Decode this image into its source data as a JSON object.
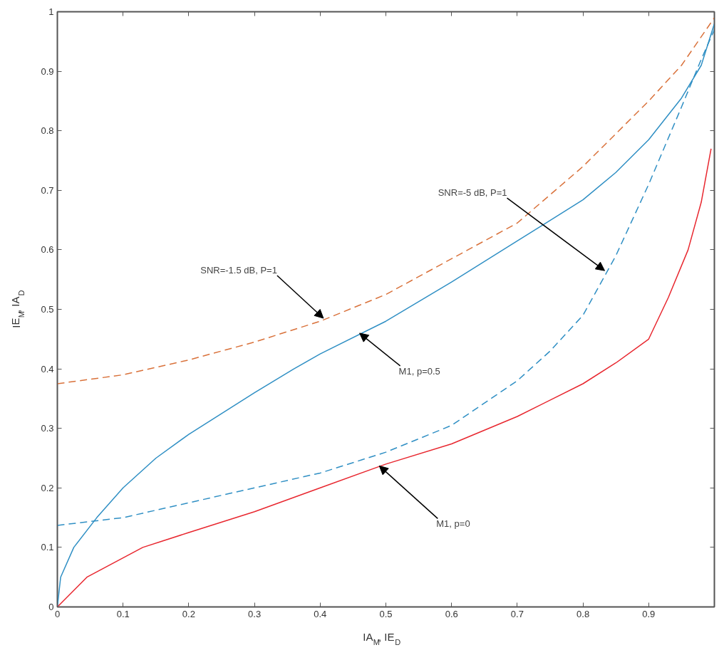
{
  "chart_data": {
    "type": "line",
    "xlabel": "IA$_{M}$, IE$_{D}$",
    "ylabel": "IE$_{M}$, IA$_{D}$",
    "xlim": [
      0,
      1
    ],
    "ylim": [
      0,
      1
    ],
    "xticks": [
      0,
      0.1,
      0.2,
      0.3,
      0.4,
      0.5,
      0.6,
      0.7,
      0.8,
      0.9,
      {
        "value": 1,
        "label": null
      }
    ],
    "yticks": [
      0,
      0.1,
      0.2,
      0.3,
      0.4,
      0.5,
      0.6,
      0.7,
      0.8,
      0.9,
      1
    ],
    "grid": false,
    "series": [
      {
        "color": "#e8272f",
        "line_style": "solid",
        "x": [
          0,
          0.045,
          0.13,
          0.2,
          0.3,
          0.4,
          0.5,
          0.6,
          0.7,
          0.8,
          0.85,
          0.9,
          0.93,
          0.96,
          0.98,
          0.995
        ],
        "values": [
          0,
          0.05,
          0.1,
          0.125,
          0.16,
          0.2,
          0.24,
          0.274,
          0.32,
          0.375,
          0.41,
          0.45,
          0.52,
          0.6,
          0.68,
          0.77
        ]
      },
      {
        "color": "#2f8fc4",
        "line_style": "solid",
        "x": [
          0,
          0.005,
          0.025,
          0.06,
          0.1,
          0.15,
          0.2,
          0.3,
          0.36,
          0.4,
          0.5,
          0.6,
          0.7,
          0.8,
          0.85,
          0.9,
          0.95,
          0.98,
          1.0
        ],
        "values": [
          0,
          0.05,
          0.1,
          0.15,
          0.2,
          0.25,
          0.29,
          0.36,
          0.4,
          0.425,
          0.48,
          0.546,
          0.615,
          0.684,
          0.73,
          0.785,
          0.855,
          0.91,
          0.98
        ]
      },
      {
        "color": "#d9713a",
        "line_style": "dashed",
        "x": [
          0,
          0.1,
          0.2,
          0.3,
          0.4,
          0.5,
          0.6,
          0.7,
          0.8,
          0.9,
          0.95,
          1.0
        ],
        "values": [
          0.375,
          0.39,
          0.415,
          0.445,
          0.48,
          0.525,
          0.585,
          0.645,
          0.74,
          0.85,
          0.91,
          0.99
        ]
      },
      {
        "color": "#2f8fc4",
        "line_style": "dashed",
        "x": [
          0,
          0.1,
          0.2,
          0.3,
          0.4,
          0.5,
          0.6,
          0.7,
          0.75,
          0.8,
          0.85,
          0.9,
          0.95,
          0.98,
          1.0
        ],
        "values": [
          0.137,
          0.15,
          0.175,
          0.2,
          0.225,
          0.26,
          0.305,
          0.38,
          0.43,
          0.49,
          0.59,
          0.71,
          0.84,
          0.92,
          0.97
        ]
      }
    ],
    "annotations": [
      {
        "text": "SNR=-1.5 dB, P=1",
        "x": 0.405,
        "y": 0.485
      },
      {
        "text": "M1, p=0.5",
        "x": 0.46,
        "y": 0.46
      },
      {
        "text": "SNR=-5 dB, P=1",
        "x": 0.833,
        "y": 0.565
      },
      {
        "text": "M1, p=0",
        "x": 0.49,
        "y": 0.237
      }
    ]
  }
}
